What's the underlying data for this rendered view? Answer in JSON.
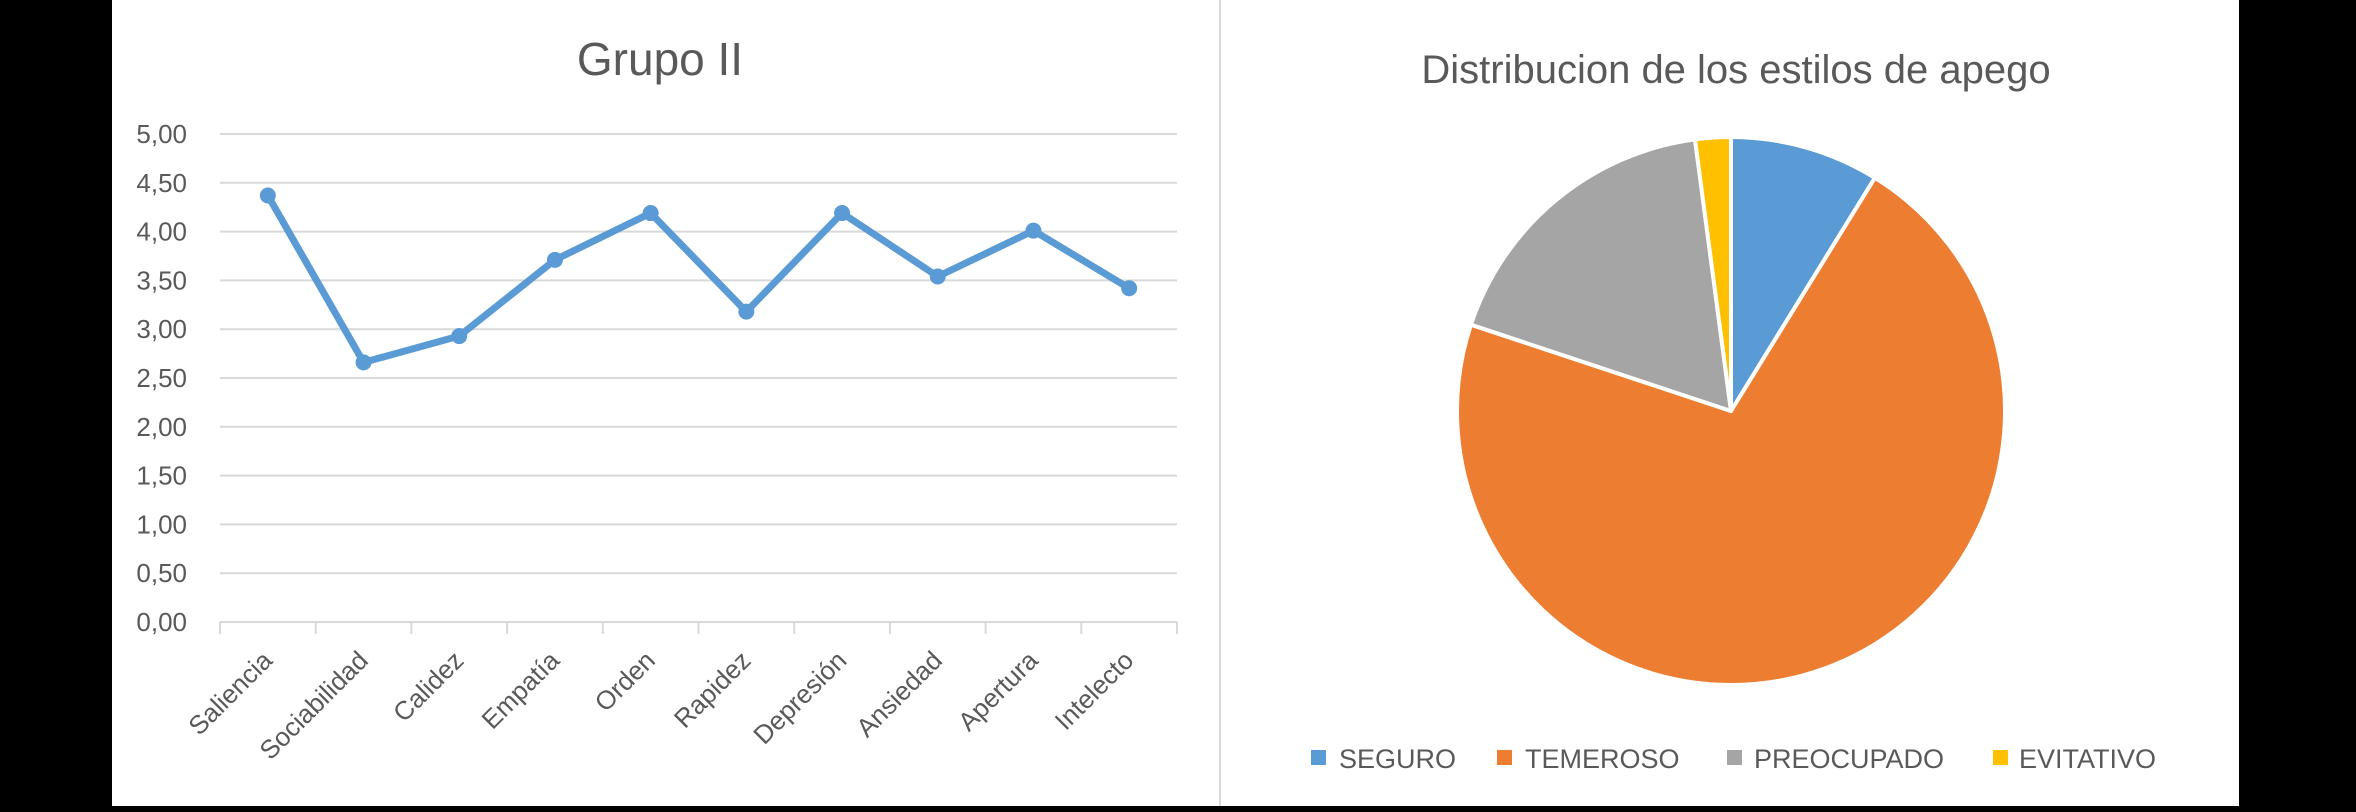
{
  "chart_data": [
    {
      "type": "line",
      "title": "Grupo II",
      "xlabel": "",
      "ylabel": "",
      "categories": [
        "Saliencia",
        "Sociabilidad",
        "Calidez",
        "Empatía",
        "Orden",
        "Rapidez",
        "Depresión",
        "Ansiedad",
        "Apertura",
        "Intelecto"
      ],
      "series": [
        {
          "name": "Grupo II",
          "color": "#5B9BD5",
          "values": [
            4.37,
            2.66,
            2.93,
            3.71,
            4.19,
            3.18,
            4.19,
            3.54,
            4.01,
            3.42
          ]
        }
      ],
      "ylim": [
        0,
        5
      ],
      "yticks": [
        "0,00",
        "0,50",
        "1,00",
        "1,50",
        "2,00",
        "2,50",
        "3,00",
        "3,50",
        "4,00",
        "4,50",
        "5,00"
      ],
      "ytick_values": [
        0,
        0.5,
        1,
        1.5,
        2,
        2.5,
        3,
        3.5,
        4,
        4.5,
        5
      ],
      "grid": true,
      "markers": true,
      "legend": null,
      "xtick_rotation": -45
    },
    {
      "type": "pie",
      "title": "Distribucion de los estilos de apego",
      "categories": [
        "SEGURO",
        "TEMEROSO",
        "PREOCUPADO",
        "EVITATIVO"
      ],
      "values": [
        8.8,
        71.3,
        17.8,
        2.1
      ],
      "unit": "percent (estimated)",
      "colors": [
        "#5B9BD5",
        "#ED7D31",
        "#A5A5A5",
        "#FFC000"
      ],
      "start_angle_deg": 0,
      "direction": "clockwise",
      "legend_position": "bottom"
    }
  ],
  "line_chart": {
    "title": "Grupo II"
  },
  "pie_chart": {
    "title": "Distribucion de los estilos de apego",
    "legend": [
      {
        "label": "SEGURO",
        "color": "#5B9BD5"
      },
      {
        "label": "TEMEROSO",
        "color": "#ED7D31"
      },
      {
        "label": "PREOCUPADO",
        "color": "#A5A5A5"
      },
      {
        "label": "EVITATIVO",
        "color": "#FFC000"
      }
    ]
  }
}
